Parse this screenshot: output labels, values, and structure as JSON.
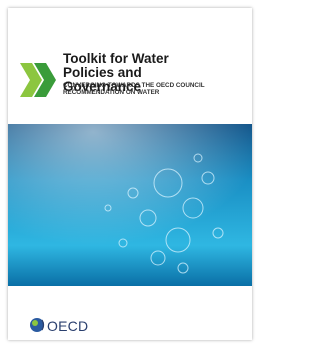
{
  "header": {
    "title": "Toolkit for Water Policies and Governance",
    "subtitle": "CONVERGING TOWARDS THE OECD COUNCIL RECOMMENDATION ON WATER"
  },
  "footer": {
    "publisher": "OECD"
  }
}
